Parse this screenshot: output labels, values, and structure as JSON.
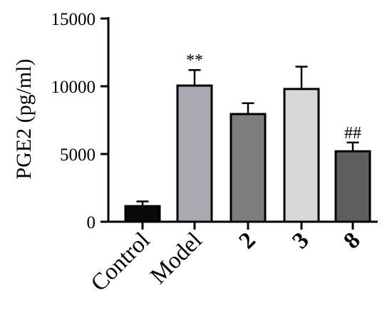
{
  "chart_data": {
    "type": "bar",
    "title": "",
    "xlabel": "",
    "ylabel": "PGE2 (pg/ml)",
    "ylim": [
      0,
      15000
    ],
    "yticks": [
      0,
      5000,
      10000,
      15000
    ],
    "ytick_labels": [
      "0",
      "5000",
      "10000",
      "15000"
    ],
    "grid": false,
    "legend": "none",
    "categories": [
      "Control",
      "Model",
      "2",
      "3",
      "8"
    ],
    "category_label_bold": [
      false,
      false,
      true,
      true,
      true
    ],
    "values": [
      1150,
      10050,
      7950,
      9800,
      5200
    ],
    "error_upper": [
      350,
      1150,
      800,
      1650,
      650
    ],
    "annotations": [
      "",
      "**",
      "",
      "",
      "##"
    ],
    "colors": [
      "#0a0a0a",
      "#a9a9b1",
      "#7d7d7d",
      "#d7d7d7",
      "#5e5e5e"
    ]
  }
}
